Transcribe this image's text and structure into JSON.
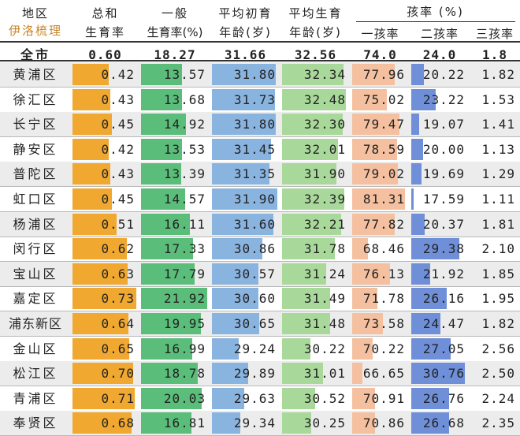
{
  "header": {
    "region": "地区",
    "brand": "伊洛梳理",
    "tfr_line1": "总和",
    "tfr_line2": "生育率",
    "gfr_line1": "一般",
    "gfr_line2": "生育率(%)",
    "afb_line1": "平均初育",
    "afb_line2": "年龄(岁)",
    "ab_line1": "平均生育",
    "ab_line2": "年龄(岁)",
    "parity_group": "孩率 (%)",
    "first": "一孩率",
    "second": "二孩率",
    "third": "三孩率"
  },
  "total": {
    "name": "全市",
    "tfr": "0.60",
    "gfr": "18.27",
    "afb": "31.66",
    "ab": "32.56",
    "first": "74.0",
    "second": "24.0",
    "third": "1.8"
  },
  "colors": {
    "tfr": "#f0a830",
    "gfr": "#5bbd7a",
    "afb": "#8ab4e0",
    "ab": "#a9d99a",
    "first": "#f5c0a0",
    "second": "#6f8fd8",
    "row_alt": "#ececec"
  },
  "chart_data": {
    "type": "table",
    "columns": [
      "地区",
      "总和生育率",
      "一般生育率(%)",
      "平均初育年龄(岁)",
      "平均生育年龄(岁)",
      "一孩率",
      "二孩率",
      "三孩率"
    ],
    "rows": [
      {
        "name": "黄浦区",
        "tfr": "0.42",
        "gfr": "13.57",
        "afb": "31.80",
        "ab": "32.34",
        "first": "77.96",
        "second": "20.22",
        "third": "1.82"
      },
      {
        "name": "徐汇区",
        "tfr": "0.43",
        "gfr": "13.68",
        "afb": "31.73",
        "ab": "32.48",
        "first": "75.02",
        "second": "23.22",
        "third": "1.53"
      },
      {
        "name": "长宁区",
        "tfr": "0.45",
        "gfr": "14.92",
        "afb": "31.80",
        "ab": "32.30",
        "first": "79.47",
        "second": "19.07",
        "third": "1.41"
      },
      {
        "name": "静安区",
        "tfr": "0.42",
        "gfr": "13.53",
        "afb": "31.45",
        "ab": "32.01",
        "first": "78.59",
        "second": "20.00",
        "third": "1.13"
      },
      {
        "name": "普陀区",
        "tfr": "0.43",
        "gfr": "13.39",
        "afb": "31.35",
        "ab": "31.90",
        "first": "79.02",
        "second": "19.69",
        "third": "1.29"
      },
      {
        "name": "虹口区",
        "tfr": "0.45",
        "gfr": "14.57",
        "afb": "31.90",
        "ab": "32.39",
        "first": "81.31",
        "second": "17.59",
        "third": "1.11"
      },
      {
        "name": "杨浦区",
        "tfr": "0.51",
        "gfr": "16.11",
        "afb": "31.60",
        "ab": "32.21",
        "first": "77.82",
        "second": "20.37",
        "third": "1.81"
      },
      {
        "name": "闵行区",
        "tfr": "0.62",
        "gfr": "17.33",
        "afb": "30.86",
        "ab": "31.78",
        "first": "68.46",
        "second": "29.38",
        "third": "2.10"
      },
      {
        "name": "宝山区",
        "tfr": "0.63",
        "gfr": "17.79",
        "afb": "30.57",
        "ab": "31.24",
        "first": "76.13",
        "second": "21.92",
        "third": "1.85"
      },
      {
        "name": "嘉定区",
        "tfr": "0.73",
        "gfr": "21.92",
        "afb": "30.60",
        "ab": "31.49",
        "first": "71.78",
        "second": "26.16",
        "third": "1.95"
      },
      {
        "name": "浦东新区",
        "tfr": "0.64",
        "gfr": "19.95",
        "afb": "30.65",
        "ab": "31.48",
        "first": "73.58",
        "second": "24.47",
        "third": "1.82"
      },
      {
        "name": "金山区",
        "tfr": "0.65",
        "gfr": "16.99",
        "afb": "29.24",
        "ab": "30.22",
        "first": "70.22",
        "second": "27.05",
        "third": "2.56"
      },
      {
        "name": "松江区",
        "tfr": "0.70",
        "gfr": "18.78",
        "afb": "29.89",
        "ab": "31.01",
        "first": "66.65",
        "second": "30.76",
        "third": "2.50"
      },
      {
        "name": "青浦区",
        "tfr": "0.71",
        "gfr": "20.03",
        "afb": "29.63",
        "ab": "30.52",
        "first": "70.91",
        "second": "26.76",
        "third": "2.24"
      },
      {
        "name": "奉贤区",
        "tfr": "0.68",
        "gfr": "16.81",
        "afb": "29.34",
        "ab": "30.25",
        "first": "70.86",
        "second": "26.68",
        "third": "2.35"
      }
    ]
  }
}
